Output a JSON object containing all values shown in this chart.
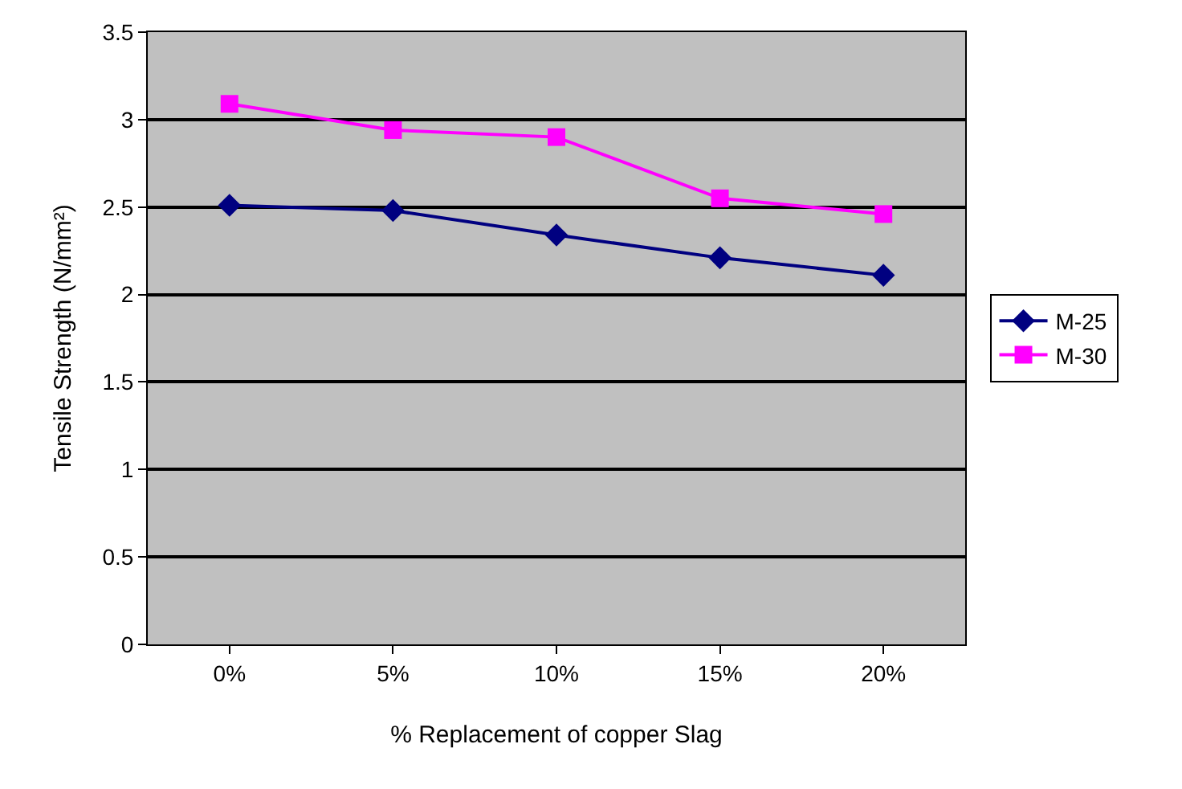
{
  "chart_data": {
    "type": "line",
    "xlabel": "% Replacement of copper Slag",
    "ylabel": "Tensile Strength (N/mm²)",
    "categories": [
      "0%",
      "5%",
      "10%",
      "15%",
      "20%"
    ],
    "series": [
      {
        "name": "M-25",
        "color": "#000080",
        "values": [
          2.51,
          2.48,
          2.34,
          2.21,
          2.11
        ],
        "marker": "diamond"
      },
      {
        "name": "M-30",
        "color": "#ff00ff",
        "values": [
          3.09,
          2.94,
          2.9,
          2.55,
          2.46
        ],
        "marker": "square"
      }
    ],
    "ylim": [
      0,
      3.5
    ],
    "yticks": [
      0,
      0.5,
      1,
      1.5,
      2,
      2.5,
      3,
      3.5
    ],
    "grid": "y",
    "legend": "right",
    "line_style": "solid"
  }
}
